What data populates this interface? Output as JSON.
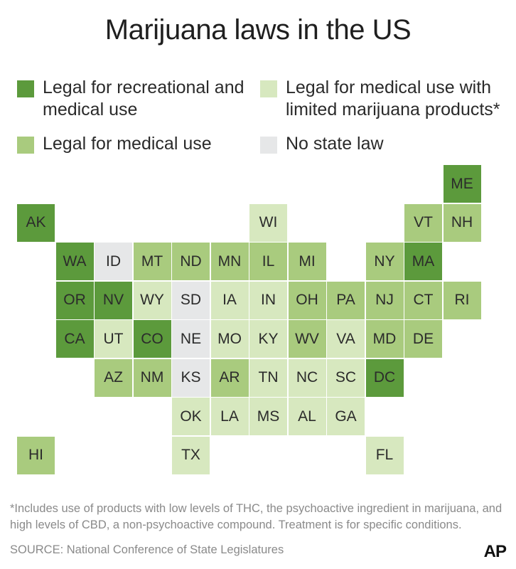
{
  "title": "Marijuana laws in the US",
  "legend": [
    {
      "key": "rec",
      "color": "#5c9a3c",
      "label": "Legal for recreational and medical use"
    },
    {
      "key": "limited",
      "color": "#d7e8bf",
      "label": "Legal for medical use with limited marijuana products*"
    },
    {
      "key": "med",
      "color": "#a9cb7e",
      "label": "Legal for medical use"
    },
    {
      "key": "none",
      "color": "#e6e7e8",
      "label": "No state law"
    }
  ],
  "states": [
    {
      "abbr": "ME",
      "status": "rec",
      "col": 11,
      "row": 0
    },
    {
      "abbr": "AK",
      "status": "rec",
      "col": 0,
      "row": 1
    },
    {
      "abbr": "WI",
      "status": "limited",
      "col": 6,
      "row": 1
    },
    {
      "abbr": "VT",
      "status": "med",
      "col": 10,
      "row": 1
    },
    {
      "abbr": "NH",
      "status": "med",
      "col": 11,
      "row": 1
    },
    {
      "abbr": "WA",
      "status": "rec",
      "col": 1,
      "row": 2
    },
    {
      "abbr": "ID",
      "status": "none",
      "col": 2,
      "row": 2
    },
    {
      "abbr": "MT",
      "status": "med",
      "col": 3,
      "row": 2
    },
    {
      "abbr": "ND",
      "status": "med",
      "col": 4,
      "row": 2
    },
    {
      "abbr": "MN",
      "status": "med",
      "col": 5,
      "row": 2
    },
    {
      "abbr": "IL",
      "status": "med",
      "col": 6,
      "row": 2
    },
    {
      "abbr": "MI",
      "status": "med",
      "col": 7,
      "row": 2
    },
    {
      "abbr": "NY",
      "status": "med",
      "col": 9,
      "row": 2
    },
    {
      "abbr": "MA",
      "status": "rec",
      "col": 10,
      "row": 2
    },
    {
      "abbr": "OR",
      "status": "rec",
      "col": 1,
      "row": 3
    },
    {
      "abbr": "NV",
      "status": "rec",
      "col": 2,
      "row": 3
    },
    {
      "abbr": "WY",
      "status": "limited",
      "col": 3,
      "row": 3
    },
    {
      "abbr": "SD",
      "status": "none",
      "col": 4,
      "row": 3
    },
    {
      "abbr": "IA",
      "status": "limited",
      "col": 5,
      "row": 3
    },
    {
      "abbr": "IN",
      "status": "limited",
      "col": 6,
      "row": 3
    },
    {
      "abbr": "OH",
      "status": "med",
      "col": 7,
      "row": 3
    },
    {
      "abbr": "PA",
      "status": "med",
      "col": 8,
      "row": 3
    },
    {
      "abbr": "NJ",
      "status": "med",
      "col": 9,
      "row": 3
    },
    {
      "abbr": "CT",
      "status": "med",
      "col": 10,
      "row": 3
    },
    {
      "abbr": "RI",
      "status": "med",
      "col": 11,
      "row": 3
    },
    {
      "abbr": "CA",
      "status": "rec",
      "col": 1,
      "row": 4
    },
    {
      "abbr": "UT",
      "status": "limited",
      "col": 2,
      "row": 4
    },
    {
      "abbr": "CO",
      "status": "rec",
      "col": 3,
      "row": 4
    },
    {
      "abbr": "NE",
      "status": "none",
      "col": 4,
      "row": 4
    },
    {
      "abbr": "MO",
      "status": "limited",
      "col": 5,
      "row": 4
    },
    {
      "abbr": "KY",
      "status": "limited",
      "col": 6,
      "row": 4
    },
    {
      "abbr": "WV",
      "status": "med",
      "col": 7,
      "row": 4
    },
    {
      "abbr": "VA",
      "status": "limited",
      "col": 8,
      "row": 4
    },
    {
      "abbr": "MD",
      "status": "med",
      "col": 9,
      "row": 4
    },
    {
      "abbr": "DE",
      "status": "med",
      "col": 10,
      "row": 4
    },
    {
      "abbr": "AZ",
      "status": "med",
      "col": 2,
      "row": 5
    },
    {
      "abbr": "NM",
      "status": "med",
      "col": 3,
      "row": 5
    },
    {
      "abbr": "KS",
      "status": "none",
      "col": 4,
      "row": 5
    },
    {
      "abbr": "AR",
      "status": "med",
      "col": 5,
      "row": 5
    },
    {
      "abbr": "TN",
      "status": "limited",
      "col": 6,
      "row": 5
    },
    {
      "abbr": "NC",
      "status": "limited",
      "col": 7,
      "row": 5
    },
    {
      "abbr": "SC",
      "status": "limited",
      "col": 8,
      "row": 5
    },
    {
      "abbr": "DC",
      "status": "rec",
      "col": 9,
      "row": 5
    },
    {
      "abbr": "OK",
      "status": "limited",
      "col": 4,
      "row": 6
    },
    {
      "abbr": "LA",
      "status": "limited",
      "col": 5,
      "row": 6
    },
    {
      "abbr": "MS",
      "status": "limited",
      "col": 6,
      "row": 6
    },
    {
      "abbr": "AL",
      "status": "limited",
      "col": 7,
      "row": 6
    },
    {
      "abbr": "GA",
      "status": "limited",
      "col": 8,
      "row": 6
    },
    {
      "abbr": "HI",
      "status": "med",
      "col": 0,
      "row": 7
    },
    {
      "abbr": "TX",
      "status": "limited",
      "col": 4,
      "row": 7
    },
    {
      "abbr": "FL",
      "status": "limited",
      "col": 9,
      "row": 7
    }
  ],
  "footnote": "*Includes use of products with low levels of THC, the psychoactive ingredient in marijuana, and high levels of CBD, a non-psychoactive compound. Treatment is for specific conditions.",
  "source": "SOURCE: National Conference of State Legislatures",
  "logo": "AP"
}
